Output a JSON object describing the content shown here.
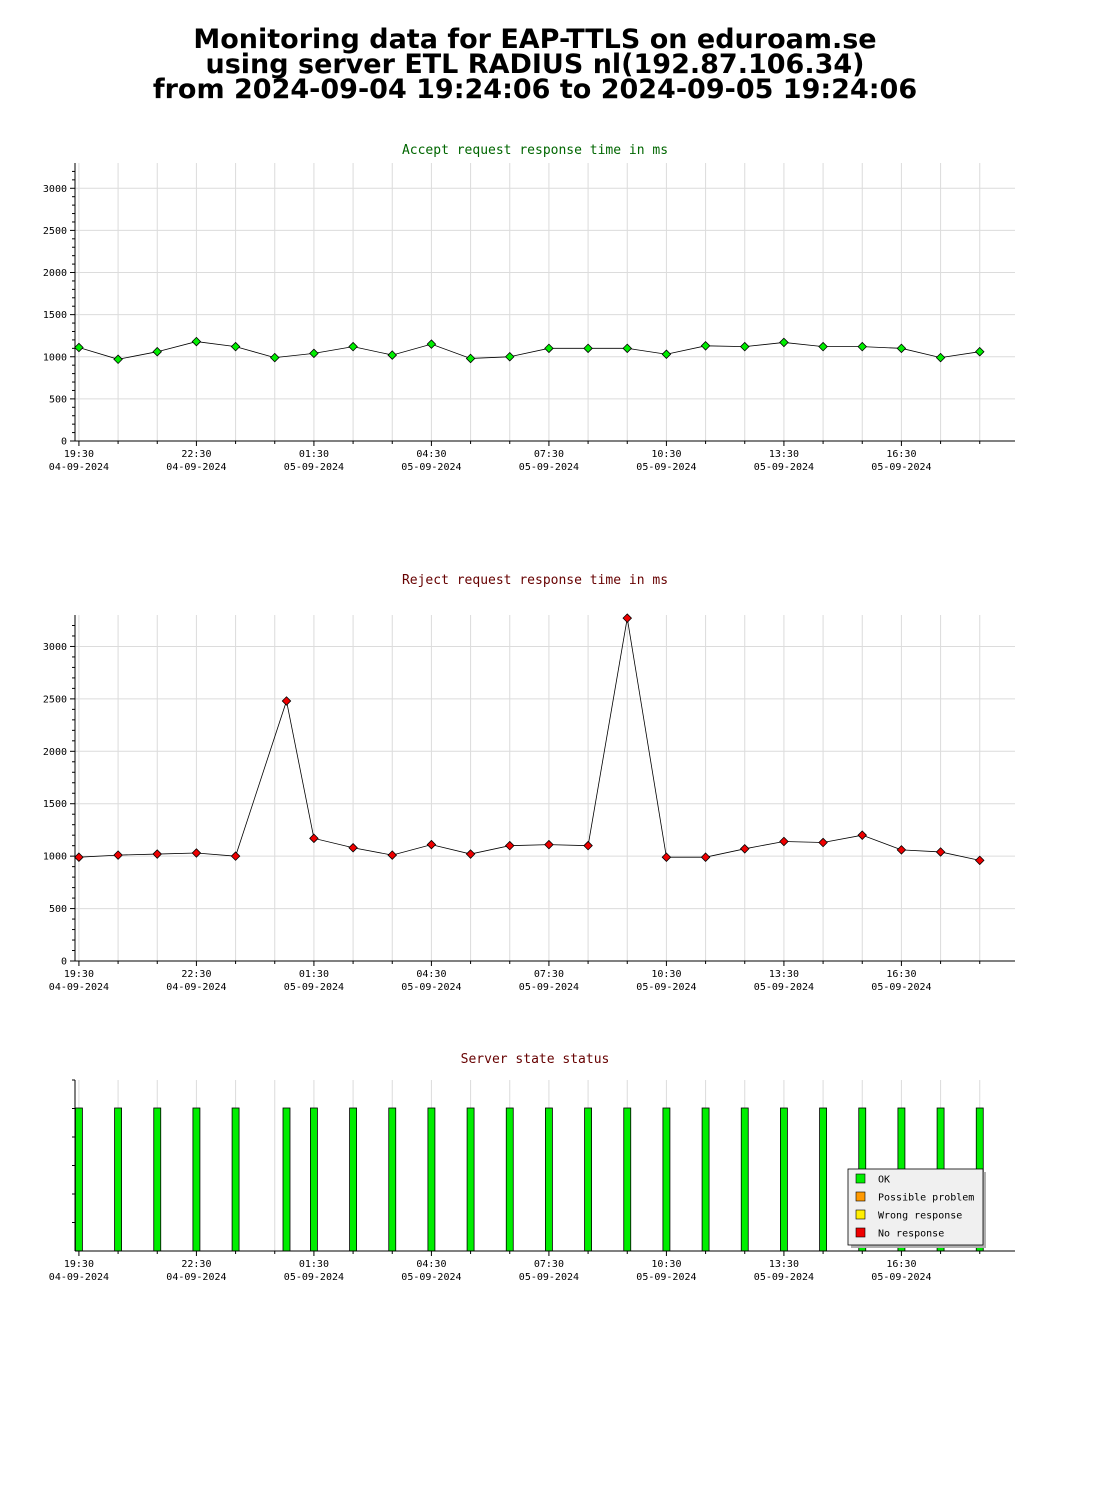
{
  "page_title": {
    "line1": "Monitoring data for EAP-TTLS on eduroam.se",
    "line2": "using server ETL RADIUS nl(192.87.106.34)",
    "line3": "from 2024-09-04 19:24:06 to 2024-09-05 19:24:06"
  },
  "x_axis": {
    "tick_labels": [
      {
        "time": "19:30",
        "date": "04-09-2024"
      },
      {
        "time": "22:30",
        "date": "04-09-2024"
      },
      {
        "time": "01:30",
        "date": "05-09-2024"
      },
      {
        "time": "04:30",
        "date": "05-09-2024"
      },
      {
        "time": "07:30",
        "date": "05-09-2024"
      },
      {
        "time": "10:30",
        "date": "05-09-2024"
      },
      {
        "time": "13:30",
        "date": "05-09-2024"
      },
      {
        "time": "16:30",
        "date": "05-09-2024"
      }
    ]
  },
  "chart_data": [
    {
      "type": "line",
      "title": "Accept request response time in ms",
      "title_color": "#006600",
      "marker_color": "#00ee00",
      "xlim": [
        "2024-09-04 19:24",
        "2024-09-05 19:24"
      ],
      "ylim": [
        0,
        3300
      ],
      "yticks": [
        0,
        500,
        1000,
        1500,
        2000,
        2500,
        3000
      ],
      "grid": true,
      "x": [
        "2024-09-04 19:30",
        "2024-09-04 20:30",
        "2024-09-04 21:30",
        "2024-09-04 22:30",
        "2024-09-04 23:30",
        "2024-09-05 00:30",
        "2024-09-05 01:30",
        "2024-09-05 02:30",
        "2024-09-05 03:30",
        "2024-09-05 04:30",
        "2024-09-05 05:30",
        "2024-09-05 06:30",
        "2024-09-05 07:30",
        "2024-09-05 08:30",
        "2024-09-05 09:30",
        "2024-09-05 10:30",
        "2024-09-05 11:30",
        "2024-09-05 12:30",
        "2024-09-05 13:30",
        "2024-09-05 14:30",
        "2024-09-05 15:30",
        "2024-09-05 16:30",
        "2024-09-05 17:30",
        "2024-09-05 18:30"
      ],
      "values": [
        1110,
        970,
        1060,
        1180,
        1120,
        990,
        1040,
        1120,
        1020,
        1150,
        980,
        1000,
        1100,
        1100,
        1100,
        1030,
        1130,
        1120,
        1170,
        1120,
        1120,
        1100,
        990,
        1060
      ]
    },
    {
      "type": "line",
      "title": "Reject request response time in ms",
      "title_color": "#660000",
      "marker_color": "#ee0000",
      "xlim": [
        "2024-09-04 19:24",
        "2024-09-05 19:24"
      ],
      "ylim": [
        0,
        3300
      ],
      "yticks": [
        0,
        500,
        1000,
        1500,
        2000,
        2500,
        3000
      ],
      "grid": true,
      "x": [
        "2024-09-04 19:30",
        "2024-09-04 20:30",
        "2024-09-04 21:30",
        "2024-09-04 22:30",
        "2024-09-04 23:30",
        "2024-09-05 00:48",
        "2024-09-05 01:30",
        "2024-09-05 02:30",
        "2024-09-05 03:30",
        "2024-09-05 04:30",
        "2024-09-05 05:30",
        "2024-09-05 06:30",
        "2024-09-05 07:30",
        "2024-09-05 08:30",
        "2024-09-05 09:30",
        "2024-09-05 10:30",
        "2024-09-05 11:30",
        "2024-09-05 12:30",
        "2024-09-05 13:30",
        "2024-09-05 14:30",
        "2024-09-05 15:30",
        "2024-09-05 16:30",
        "2024-09-05 17:30",
        "2024-09-05 18:30"
      ],
      "values": [
        990,
        1010,
        1020,
        1030,
        1000,
        2480,
        1170,
        1080,
        1010,
        1110,
        1020,
        1100,
        1110,
        1100,
        3270,
        990,
        990,
        1070,
        1140,
        1130,
        1200,
        1060,
        1040,
        960
      ]
    },
    {
      "type": "bar",
      "title": "Server state status",
      "title_color": "#660000",
      "xlim": [
        "2024-09-04 19:24",
        "2024-09-05 19:24"
      ],
      "legend_position": "bottom-right",
      "legend": [
        {
          "label": "OK",
          "color": "#00ee00"
        },
        {
          "label": "Possible problem",
          "color": "#ff9900"
        },
        {
          "label": "Wrong response",
          "color": "#ffee00"
        },
        {
          "label": "No response",
          "color": "#ee0000"
        }
      ],
      "x": [
        "2024-09-04 19:30",
        "2024-09-04 20:30",
        "2024-09-04 21:30",
        "2024-09-04 22:30",
        "2024-09-04 23:30",
        "2024-09-05 00:48",
        "2024-09-05 01:30",
        "2024-09-05 02:30",
        "2024-09-05 03:30",
        "2024-09-05 04:30",
        "2024-09-05 05:30",
        "2024-09-05 06:30",
        "2024-09-05 07:30",
        "2024-09-05 08:30",
        "2024-09-05 09:30",
        "2024-09-05 10:30",
        "2024-09-05 11:30",
        "2024-09-05 12:30",
        "2024-09-05 13:30",
        "2024-09-05 14:30",
        "2024-09-05 15:30",
        "2024-09-05 16:30",
        "2024-09-05 17:30",
        "2024-09-05 18:30"
      ],
      "states": [
        "OK",
        "OK",
        "OK",
        "OK",
        "OK",
        "OK",
        "OK",
        "OK",
        "OK",
        "OK",
        "OK",
        "OK",
        "OK",
        "OK",
        "OK",
        "OK",
        "OK",
        "OK",
        "OK",
        "OK",
        "OK",
        "OK",
        "OK",
        "OK"
      ]
    }
  ]
}
